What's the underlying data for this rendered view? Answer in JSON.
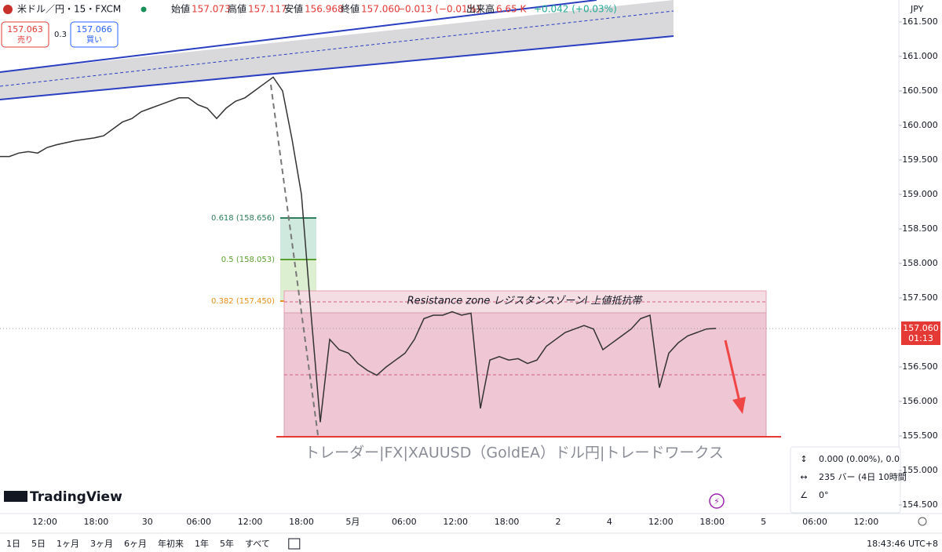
{
  "header": {
    "symbol": "米ドル／円・15・FXCM",
    "open_label": "始値",
    "open": "157.073",
    "high_label": "高値",
    "high": "157.117",
    "low_label": "安値",
    "low": "156.968",
    "close_label": "終値",
    "close": "157.060",
    "change": "−0.013 (−0.01%)",
    "volume_label": "出来高",
    "volume": "6.65 K",
    "change2": "+0.042 (+0.03%)"
  },
  "trade": {
    "sell_price": "157.063",
    "sell_label": "売り",
    "spread": "0.3",
    "buy_price": "157.066",
    "buy_label": "買い"
  },
  "currency": "JPY",
  "chart_data": {
    "type": "line",
    "color": "#333333",
    "values": [
      159.55,
      159.55,
      159.6,
      159.62,
      159.6,
      159.68,
      159.72,
      159.75,
      159.78,
      159.8,
      159.82,
      159.85,
      159.95,
      160.05,
      160.1,
      160.2,
      160.25,
      160.3,
      160.35,
      160.4,
      160.4,
      160.3,
      160.25,
      160.1,
      160.25,
      160.35,
      160.4,
      160.5,
      160.6,
      160.7,
      160.5,
      159.8,
      159.0,
      157.3,
      155.7,
      156.9,
      156.75,
      156.7,
      156.55,
      156.45,
      156.38,
      156.5,
      156.6,
      156.7,
      156.9,
      157.2,
      157.25,
      157.25,
      157.3,
      157.25,
      157.28,
      155.9,
      156.6,
      156.65,
      156.6,
      156.62,
      156.55,
      156.6,
      156.8,
      156.9,
      157.0,
      157.05,
      157.1,
      157.05,
      156.75,
      156.85,
      156.95,
      157.05,
      157.2,
      157.25,
      156.2,
      156.7,
      156.85,
      156.95,
      157.0,
      157.05,
      157.06
    ],
    "ylim": [
      154.375,
      161.818
    ],
    "yticks": [
      {
        "value": 154.5,
        "label": "154.500"
      },
      {
        "value": 155,
        "label": "155.000"
      },
      {
        "value": 155.5,
        "label": "155.500"
      },
      {
        "value": 156,
        "label": "156.000"
      },
      {
        "value": 156.5,
        "label": "156.500"
      },
      {
        "value": 157.5,
        "label": "157.500"
      },
      {
        "value": 158,
        "label": "158.000"
      },
      {
        "value": 158.5,
        "label": "158.500"
      },
      {
        "value": 159,
        "label": "159.000"
      },
      {
        "value": 159.5,
        "label": "159.500"
      },
      {
        "value": 160,
        "label": "160.000"
      },
      {
        "value": 160.5,
        "label": "160.500"
      },
      {
        "value": 161,
        "label": "161.000"
      },
      {
        "value": 161.5,
        "label": "161.500"
      }
    ],
    "time_axis": [
      "12:00",
      "18:00",
      "30",
      "06:00",
      "12:00",
      "18:00",
      "5月",
      "06:00",
      "12:00",
      "18:00",
      "2",
      "4",
      "12:00",
      "18:00",
      "5",
      "06:00",
      "12:00"
    ]
  },
  "fib_levels": [
    "0.618 (158.656)",
    "0.5 (158.053)",
    "0.382 (157.450)"
  ],
  "resistance_text": "Resistance zone  レジスタンスゾーンl 上値抵抗帯",
  "watermark": "トレーダー|FX|XAUUSD（GoldEA）ドル円|トレードワークス",
  "last_price": "157.060",
  "countdown": "01:13",
  "info_box": [
    "0.000 (0.00%), 0.0",
    "235 バー (4日 10時間",
    "0°"
  ],
  "logo": "TradingView",
  "toolbar": [
    "1日",
    "5日",
    "1ヶ月",
    "3ヶ月",
    "6ヶ月",
    "年初来",
    "1年",
    "5年",
    "すべて"
  ],
  "clock": "18:43:46 UTC+8"
}
